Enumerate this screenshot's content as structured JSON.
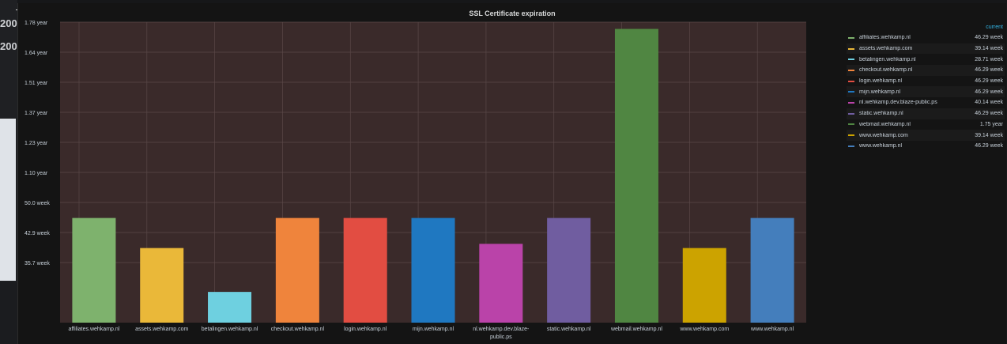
{
  "background": {
    "left_text": [
      "200",
      "200"
    ],
    "panel_corner_mark": "i"
  },
  "panel": {
    "title": "SSL Certificate expiration",
    "legend_header": "current"
  },
  "chart_data": {
    "type": "bar",
    "title": "SSL Certificate expiration",
    "y_unit": "week",
    "y_axis_ticks": [
      "1.78 year",
      "1.64 year",
      "1.51 year",
      "1.37 year",
      "1.23 year",
      "1.10 year",
      "50.0 week",
      "42.9 week",
      "35.7 week"
    ],
    "categories": [
      "affiliates.wehkamp.nl",
      "assets.wehkamp.com",
      "betalingen.wehkamp.nl",
      "checkout.wehkamp.nl",
      "login.wehkamp.nl",
      "mijn.wehkamp.nl",
      "nl.wehkamp.dev.blaze-public.ps",
      "static.wehkamp.nl",
      "webmail.wehkamp.nl",
      "www.wehkamp.com",
      "www.wehkamp.nl"
    ],
    "category_labels": [
      [
        "affiliates.wehkamp.nl"
      ],
      [
        "assets.wehkamp.com"
      ],
      [
        "betalingen.wehkamp.nl"
      ],
      [
        "checkout.wehkamp.nl"
      ],
      [
        "login.wehkamp.nl"
      ],
      [
        "mijn.wehkamp.nl"
      ],
      [
        "nl.wehkamp.dev.blaze-",
        "public.ps"
      ],
      [
        "static.wehkamp.nl"
      ],
      [
        "webmail.wehkamp.nl"
      ],
      [
        "www.wehkamp.com"
      ],
      [
        "www.wehkamp.nl"
      ]
    ],
    "values": [
      46.29,
      39.14,
      28.71,
      46.29,
      46.29,
      46.29,
      40.14,
      46.29,
      91.25,
      39.14,
      46.29
    ],
    "ylim": [
      21.4,
      92.86
    ],
    "colors": [
      "#7eb26d",
      "#eab839",
      "#6ed0e0",
      "#ef843c",
      "#e24d42",
      "#1f78c1",
      "#ba43a9",
      "#705da0",
      "#508642",
      "#cca300",
      "#447ebc"
    ],
    "legend": [
      {
        "name": "affiliates.wehkamp.nl",
        "current": "46.29 week"
      },
      {
        "name": "assets.wehkamp.com",
        "current": "39.14 week"
      },
      {
        "name": "betalingen.wehkamp.nl",
        "current": "28.71 week"
      },
      {
        "name": "checkout.wehkamp.nl",
        "current": "46.29 week"
      },
      {
        "name": "login.wehkamp.nl",
        "current": "46.29 week"
      },
      {
        "name": "mijn.wehkamp.nl",
        "current": "46.29 week"
      },
      {
        "name": "nl.wehkamp.dev.blaze-public.ps",
        "current": "40.14 week"
      },
      {
        "name": "static.wehkamp.nl",
        "current": "46.29 week"
      },
      {
        "name": "webmail.wehkamp.nl",
        "current": "1.75 year"
      },
      {
        "name": "www.wehkamp.com",
        "current": "39.14 week"
      },
      {
        "name": "www.wehkamp.nl",
        "current": "46.29 week"
      }
    ],
    "legend_placement": "right",
    "grid": true
  }
}
